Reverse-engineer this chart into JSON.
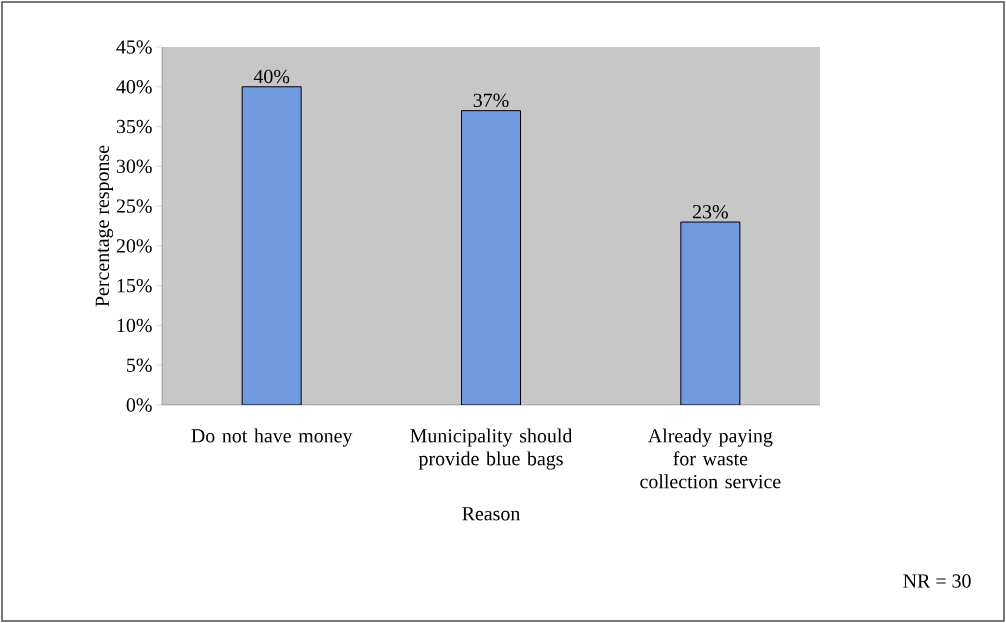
{
  "chart_data": {
    "type": "bar",
    "categories": [
      "Do not have money",
      "Municipality should provide blue bags",
      "Already paying for waste collection service"
    ],
    "values": [
      40,
      37,
      23
    ],
    "color": "#6f9ae0",
    "value_labels": [
      "40%",
      "37%",
      "23%"
    ],
    "xlabel": "Reason",
    "ylabel": "Percentage response",
    "ylim": [
      0,
      45
    ],
    "yticks": [
      {
        "value": 0,
        "label": "0%"
      },
      {
        "value": 5,
        "label": "5%"
      },
      {
        "value": 10,
        "label": "10%"
      },
      {
        "value": 15,
        "label": "15%"
      },
      {
        "value": 20,
        "label": "20%"
      },
      {
        "value": 25,
        "label": "25%"
      },
      {
        "value": 30,
        "label": "30%"
      },
      {
        "value": 35,
        "label": "35%"
      },
      {
        "value": 40,
        "label": "40%"
      },
      {
        "value": 45,
        "label": "45%"
      }
    ],
    "annotations": [
      "NR = 30"
    ]
  }
}
